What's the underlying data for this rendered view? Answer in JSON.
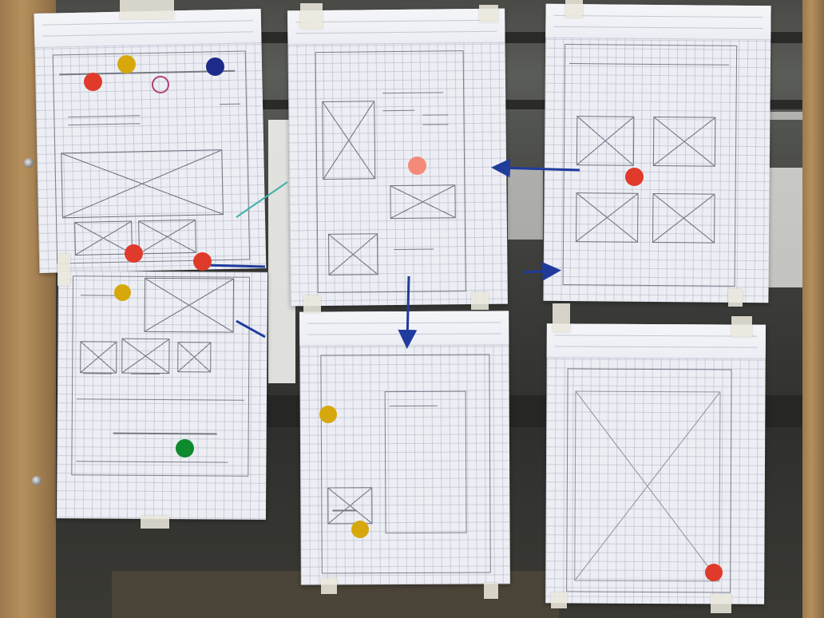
{
  "scene": {
    "description_tag": "",
    "sheet_count": 6,
    "colors": {
      "red_dot": "#e03a2a",
      "yellow_dot": "#d7a80c",
      "blue_dot": "#1d2a8a",
      "green_dot": "#0f8a2c",
      "salmon_dot": "#f58a78",
      "marker_arrow": "#1f3b9c",
      "paper": "#eceef4"
    }
  }
}
